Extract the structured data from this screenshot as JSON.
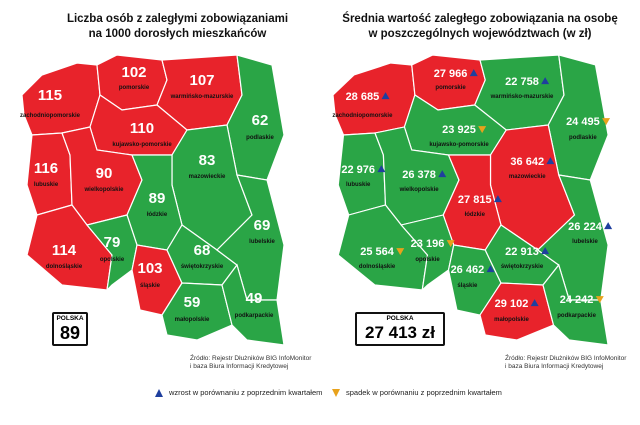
{
  "left_map": {
    "title_line1": "Liczba osób z zaległymi zobowiązaniami",
    "title_line2": "na 1000 dorosłych mieszkańców",
    "national_label": "POLSKA",
    "national_value": "89",
    "regions": [
      {
        "name": "zachodniopomorskie",
        "value": "115",
        "color": "red"
      },
      {
        "name": "pomorskie",
        "value": "102",
        "color": "red"
      },
      {
        "name": "warmińsko-mazurskie",
        "value": "107",
        "color": "red"
      },
      {
        "name": "kujawsko-pomorskie",
        "value": "110",
        "color": "red"
      },
      {
        "name": "lubuskie",
        "value": "116",
        "color": "red"
      },
      {
        "name": "wielkopolskie",
        "value": "90",
        "color": "red"
      },
      {
        "name": "podlaskie",
        "value": "62",
        "color": "green"
      },
      {
        "name": "mazowieckie",
        "value": "83",
        "color": "green"
      },
      {
        "name": "łódzkie",
        "value": "89",
        "color": "green"
      },
      {
        "name": "dolnośląskie",
        "value": "114",
        "color": "red"
      },
      {
        "name": "opolskie",
        "value": "79",
        "color": "green"
      },
      {
        "name": "śląskie",
        "value": "103",
        "color": "red"
      },
      {
        "name": "świętokrzyskie",
        "value": "68",
        "color": "green"
      },
      {
        "name": "lubelskie",
        "value": "69",
        "color": "green"
      },
      {
        "name": "małopolskie",
        "value": "59",
        "color": "green"
      },
      {
        "name": "podkarpackie",
        "value": "49",
        "color": "green"
      }
    ],
    "source_line1": "Źródło: Rejestr Dłużników BIG InfoMonitor",
    "source_line2": "i baza Biura Informacji Kredytowej"
  },
  "right_map": {
    "title_line1": "Średnia wartość zaległego zobowiązania na osobę",
    "title_line2": "w poszczególnych województwach (w zł)",
    "national_label": "POLSKA",
    "national_value": "27 413 zł",
    "regions": [
      {
        "name": "zachodniopomorskie",
        "value": "28 685",
        "trend": "up",
        "color": "red"
      },
      {
        "name": "pomorskie",
        "value": "27 966",
        "trend": "up",
        "color": "red"
      },
      {
        "name": "warmińsko-mazurskie",
        "value": "22 758",
        "trend": "up",
        "color": "green"
      },
      {
        "name": "kujawsko-pomorskie",
        "value": "23 925",
        "trend": "down",
        "color": "green"
      },
      {
        "name": "podlaskie",
        "value": "24 495",
        "trend": "down",
        "color": "green"
      },
      {
        "name": "lubuskie",
        "value": "22 976",
        "trend": "up",
        "color": "green"
      },
      {
        "name": "wielkopolskie",
        "value": "26 378",
        "trend": "up",
        "color": "green"
      },
      {
        "name": "mazowieckie",
        "value": "36 642",
        "trend": "up",
        "color": "red"
      },
      {
        "name": "łódzkie",
        "value": "27 815",
        "trend": "up",
        "color": "red"
      },
      {
        "name": "dolnośląskie",
        "value": "25 564",
        "trend": "down",
        "color": "green"
      },
      {
        "name": "opolskie",
        "value": "23 196",
        "trend": "down",
        "color": "green"
      },
      {
        "name": "śląskie",
        "value": "26 462",
        "trend": "up",
        "color": "green"
      },
      {
        "name": "świętokrzyskie",
        "value": "22 913",
        "trend": "up",
        "color": "green"
      },
      {
        "name": "lubelskie",
        "value": "26 224",
        "trend": "up",
        "color": "green"
      },
      {
        "name": "małopolskie",
        "value": "29 102",
        "trend": "up",
        "color": "red"
      },
      {
        "name": "podkarpackie",
        "value": "24 242",
        "trend": "down",
        "color": "green"
      }
    ],
    "source_line1": "Źródło: Rejestr Dłużników BIG InfoMonitor",
    "source_line2": "i baza Biura Informacji Kredytowej"
  },
  "legend": {
    "up_label": "wzrost w porównaniu z poprzednim kwartałem",
    "down_label": "spadek w porównaniu z poprzednim kwartałem"
  },
  "colors": {
    "red": "#e8232b",
    "green": "#2aa546",
    "border": "#ffffff",
    "up": "#1f3f9e",
    "down": "#e8a21c"
  }
}
